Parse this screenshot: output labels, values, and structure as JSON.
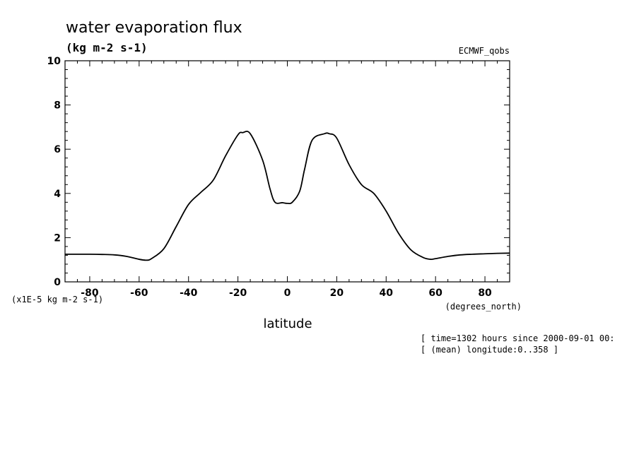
{
  "chart_data": {
    "type": "line",
    "title": "water evaporation flux",
    "units_label": "(kg m-2 s-1)",
    "dataset_label": "ECMWF_qobs",
    "xlabel": "latitude",
    "x_units_label": "(degrees_north)",
    "y_scale_label": "(x1E-5 kg m-2 s-1)",
    "xlim": [
      -90,
      90
    ],
    "ylim": [
      0,
      10
    ],
    "x_ticks": [
      -80,
      -60,
      -40,
      -20,
      0,
      20,
      40,
      60,
      80
    ],
    "y_ticks": [
      0,
      2,
      4,
      6,
      8,
      10
    ],
    "x_tick_labels": [
      "-80",
      "-60",
      "-40",
      "-20",
      "0",
      "20",
      "40",
      "60",
      "80"
    ],
    "y_tick_labels": [
      "0",
      "2",
      "4",
      "6",
      "8",
      "10"
    ],
    "grid": false,
    "series": [
      {
        "x": [
          -90,
          -85,
          -80,
          -75,
          -70,
          -65,
          -60,
          -57,
          -55,
          -50,
          -45,
          -40,
          -35,
          -30,
          -25,
          -20,
          -18,
          -15,
          -10,
          -7,
          -5,
          -2,
          0,
          2,
          5,
          7,
          10,
          15,
          17,
          20,
          25,
          30,
          35,
          40,
          45,
          50,
          55,
          58,
          60,
          65,
          70,
          75,
          80,
          85,
          90
        ],
        "y": [
          1.25,
          1.25,
          1.25,
          1.24,
          1.22,
          1.15,
          1.02,
          0.98,
          1.05,
          1.5,
          2.5,
          3.5,
          4.05,
          4.6,
          5.7,
          6.65,
          6.75,
          6.7,
          5.5,
          4.2,
          3.6,
          3.58,
          3.55,
          3.6,
          4.1,
          5.1,
          6.4,
          6.7,
          6.7,
          6.5,
          5.3,
          4.4,
          4.0,
          3.2,
          2.2,
          1.45,
          1.1,
          1.02,
          1.05,
          1.15,
          1.22,
          1.25,
          1.27,
          1.29,
          1.3
        ]
      }
    ]
  },
  "annotations": {
    "time_line": "[ time=1302 hours since 2000-09-01 00:",
    "lon_line": "[ (mean) longitude:0..358 ]"
  }
}
